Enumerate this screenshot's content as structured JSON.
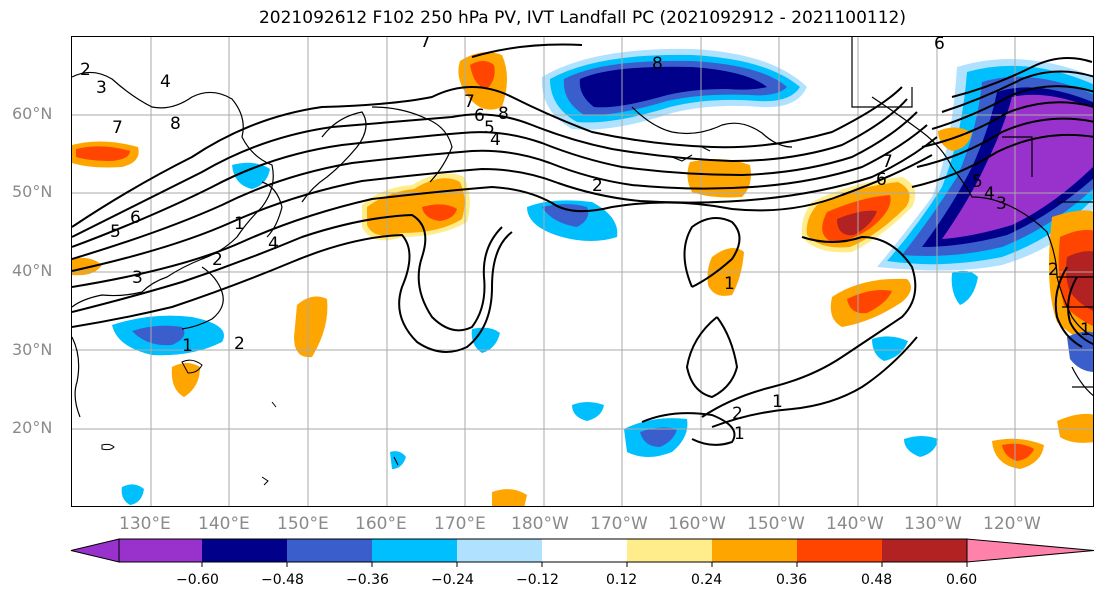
{
  "title": "2021092612 F102 250 hPa PV, IVT Landfall PC (2021092912 - 2021100112)",
  "lat_labels": [
    "60°N",
    "50°N",
    "40°N",
    "30°N",
    "20°N"
  ],
  "lon_labels": [
    "130°E",
    "140°E",
    "150°E",
    "160°E",
    "170°E",
    "180°W",
    "170°W",
    "160°W",
    "150°W",
    "140°W",
    "130°W",
    "120°W"
  ],
  "contour_labels": [
    "7",
    "8",
    "3",
    "4",
    "2",
    "8",
    "7",
    "6",
    "5",
    "4",
    "3",
    "2",
    "1",
    "8",
    "7",
    "6",
    "5",
    "4",
    "6",
    "7",
    "6",
    "5",
    "4",
    "3",
    "2",
    "1",
    "2",
    "1",
    "2",
    "1",
    "2",
    "1",
    "1"
  ],
  "colorbar": {
    "ticks": [
      "−0.60",
      "−0.48",
      "−0.36",
      "−0.24",
      "−0.12",
      "0.12",
      "0.24",
      "0.36",
      "0.48",
      "0.60"
    ],
    "colors": [
      "#9932cc",
      "#00008b",
      "#3a5fcd",
      "#00bfff",
      "#b0e2ff",
      "#ffffff",
      "#ffec8b",
      "#ffa500",
      "#ff4500",
      "#b22222",
      "#ff82ab"
    ]
  }
}
